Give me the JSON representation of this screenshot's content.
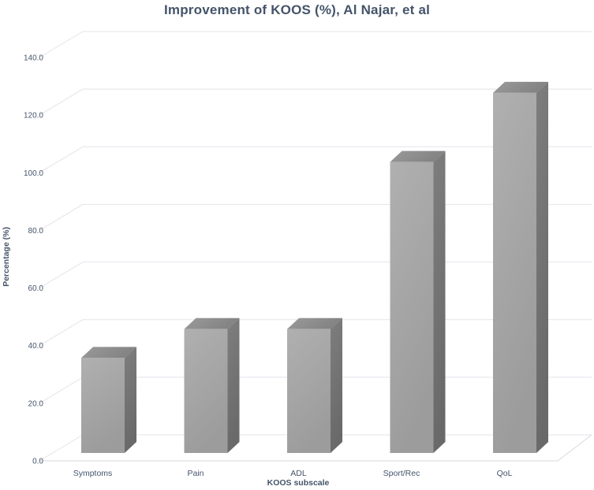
{
  "chart_data": {
    "type": "bar",
    "variant": "3d-column",
    "title": "Improvement of KOOS (%), Al Najar, et al",
    "categories": [
      "Symptoms",
      "Pain",
      "ADL",
      "Sport/Rec",
      "QoL"
    ],
    "values": [
      33,
      43,
      43,
      101,
      125
    ],
    "xlabel": "KOOS subscale",
    "ylabel": "Percentage (%)",
    "ylim": [
      0,
      140
    ],
    "ytick_step": 20,
    "yticks": [
      "0.0",
      "20.0",
      "40.0",
      "60.0",
      "80.0",
      "100.0",
      "120.0",
      "140.0"
    ],
    "grid": true,
    "legend": false
  },
  "colors": {
    "background": "#FFFFFF",
    "title_text": "#44546A",
    "axis_text": "#44546A",
    "gridline": "#E4E4EB",
    "floor_line": "#D8D8DF",
    "bar_front_light": "#B0B0B0",
    "bar_front_dark": "#9C9C9C",
    "bar_top_light": "#9B9B9B",
    "bar_top_dark": "#828282",
    "bar_side_light": "#7E7E7E",
    "bar_side_dark": "#696969"
  }
}
